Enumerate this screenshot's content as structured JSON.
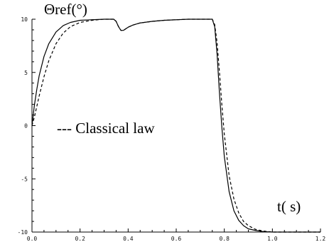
{
  "chart_data": {
    "type": "line",
    "ylabel": "Θref(°)",
    "xlabel": "t( s)",
    "xlim": [
      0,
      1.2
    ],
    "ylim": [
      -10,
      10
    ],
    "x_ticks": [
      "0.0",
      "0.2",
      "0.4",
      "0.6",
      "0.8",
      "1.0",
      "1.2"
    ],
    "y_ticks": [
      "10",
      "5",
      "0",
      "-5",
      "-10"
    ],
    "grid": false,
    "legend": "--- Classical law",
    "series": [
      {
        "name": "",
        "style": "solid",
        "x": [
          0,
          0.01,
          0.02,
          0.03,
          0.05,
          0.07,
          0.1,
          0.13,
          0.16,
          0.2,
          0.25,
          0.3,
          0.34,
          0.35,
          0.36,
          0.37,
          0.38,
          0.39,
          0.4,
          0.42,
          0.45,
          0.5,
          0.55,
          0.6,
          0.65,
          0.7,
          0.74,
          0.75,
          0.76,
          0.77,
          0.78,
          0.79,
          0.8,
          0.82,
          0.84,
          0.86,
          0.88,
          0.9,
          0.93,
          0.96,
          1.0,
          1.05,
          1.1,
          1.15,
          1.2
        ],
        "y": [
          0,
          1.9,
          3.4,
          4.7,
          6.5,
          7.7,
          8.8,
          9.4,
          9.7,
          9.9,
          9.95,
          10,
          10,
          9.8,
          9.3,
          8.95,
          8.95,
          9.1,
          9.25,
          9.45,
          9.65,
          9.8,
          9.9,
          9.95,
          10,
          10,
          10,
          10,
          9.3,
          6.7,
          3.0,
          -0.2,
          -2.9,
          -6.2,
          -8.0,
          -8.9,
          -9.4,
          -9.7,
          -9.85,
          -9.95,
          -10,
          -10,
          -10,
          -10,
          -10
        ]
      },
      {
        "name": "Classical law",
        "style": "dashed",
        "x": [
          0,
          0.01,
          0.02,
          0.03,
          0.05,
          0.07,
          0.1,
          0.13,
          0.16,
          0.2,
          0.25,
          0.3,
          0.34,
          0.35,
          0.36,
          0.37,
          0.38,
          0.39,
          0.4,
          0.42,
          0.45,
          0.5,
          0.55,
          0.6,
          0.65,
          0.7,
          0.74,
          0.75,
          0.76,
          0.77,
          0.78,
          0.79,
          0.8,
          0.82,
          0.84,
          0.86,
          0.88,
          0.9,
          0.93,
          0.96,
          1.0,
          1.05,
          1.1,
          1.15,
          1.2
        ],
        "y": [
          0,
          0.8,
          1.8,
          2.8,
          4.6,
          6.1,
          7.7,
          8.7,
          9.3,
          9.7,
          9.9,
          10,
          10,
          9.8,
          9.3,
          8.95,
          8.95,
          9.1,
          9.25,
          9.45,
          9.65,
          9.8,
          9.9,
          9.95,
          10,
          10,
          10,
          10,
          9.5,
          7.8,
          5.0,
          1.9,
          -0.8,
          -4.7,
          -6.9,
          -8.2,
          -9.0,
          -9.4,
          -9.75,
          -9.9,
          -10,
          -10,
          -10,
          -10,
          -10
        ]
      }
    ]
  }
}
